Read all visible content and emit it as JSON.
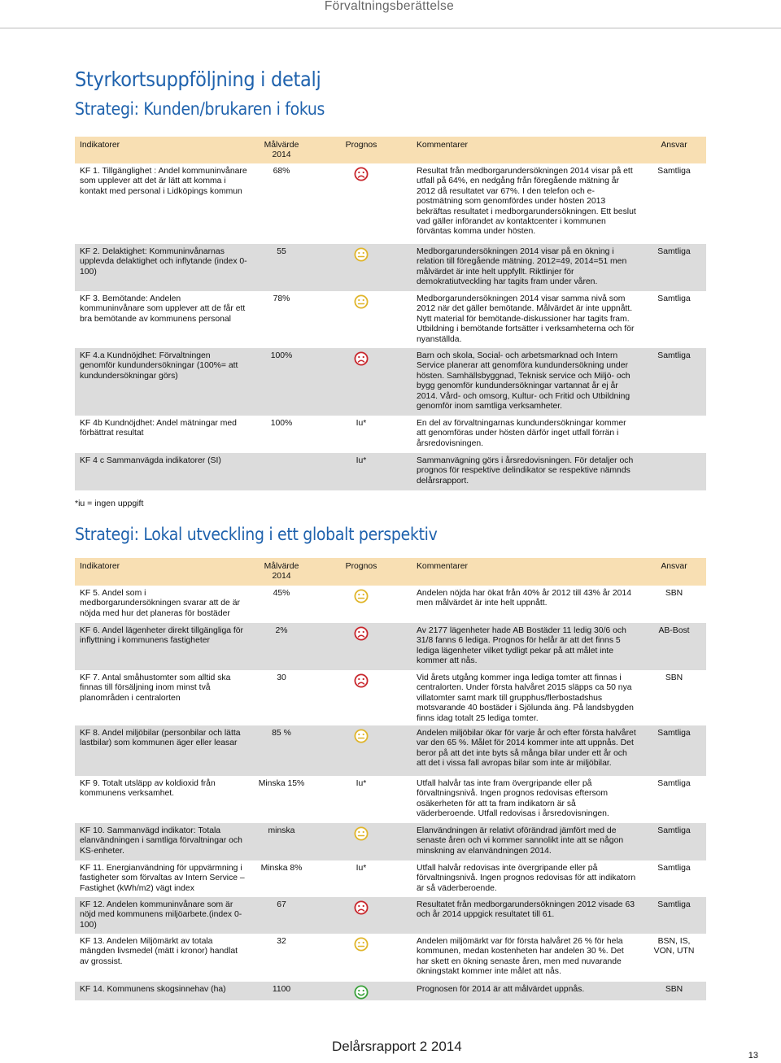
{
  "header": {
    "section": "Förvaltningsberättelse"
  },
  "title": "Styrkortsuppföljning i detalj",
  "sections": [
    {
      "heading": "Strategi: Kunden/brukaren i fokus",
      "columns": [
        "Indikatorer",
        "Målvärde 2014",
        "Prognos",
        "Kommentarer",
        "Ansvar"
      ],
      "rows": [
        {
          "indicator": "KF 1. Tillgänglighet : Andel kommuninvånare som upplever att det är lätt att komma i kontakt med personal i Lidköpings kommun",
          "target": "68%",
          "icon": "sad",
          "comment": "Resultat från medborgarundersökningen 2014 visar på ett utfall på 64%, en nedgång från föregående mätning år 2012 då resultatet var 67%. I den telefon och e-postmätning som genomfördes under hösten 2013 bekräftas resultatet i medborgarundersökningen. Ett beslut vad gäller införandet av kontaktcenter i kommunen förväntas komma under hösten.",
          "responsible": "Samtliga"
        },
        {
          "indicator": "KF 2. Delaktighet: Kommuninvånarnas upplevda delaktighet och inflytande (index 0-100)",
          "target": "55",
          "icon": "neutral",
          "comment": "Medborgarundersökningen 2014 visar på en ökning i relation till föregående mätning. 2012=49, 2014=51 men målvärdet är inte helt uppfyllt. Riktlinjer för demokratiutveckling har tagits fram under våren.",
          "responsible": "Samtliga"
        },
        {
          "indicator": "KF 3. Bemötande: Andelen kommuninvånare som upplever att de får ett bra bemötande av kommunens personal",
          "target": "78%",
          "icon": "neutral",
          "comment": "Medborgarundersökningen 2014 visar samma nivå som 2012 när det gäller bemötande. Målvärdet är inte uppnått. Nytt material för bemötande-diskussioner har tagits fram. Utbildning i bemötande fortsätter i verksamheterna och för nyanställda.",
          "responsible": "Samtliga"
        },
        {
          "indicator": "KF 4.a Kundnöjdhet: Förvaltningen genomför kundundersökningar (100%= att kundundersökningar görs)",
          "target": "100%",
          "icon": "sad",
          "comment": "Barn och skola, Social- och arbetsmarknad och Intern Service planerar att genomföra kundundersökning under hösten. Samhällsbyggnad, Teknisk service och Miljö- och bygg genomför kundundersökningar vartannat år ej år 2014. Vård- och omsorg, Kultur- och Fritid och Utbildning genomför inom samtliga verksamheter.",
          "responsible": "Samtliga"
        },
        {
          "indicator": "KF 4b Kundnöjdhet: Andel mätningar med förbättrat resultat",
          "target": "100%",
          "prognosis": "Iu*",
          "comment": "En del av förvaltningarnas kundundersökningar kommer att genomföras under hösten därför inget utfall förrän i årsredovisningen."
        },
        {
          "indicator": "KF 4 c Sammanvägda indikatorer (SI)",
          "prognosis": "Iu*",
          "comment": "Sammanvägning görs i årsredovisningen. För detaljer och prognos för respektive delindikator se respektive nämnds delårsrapport."
        }
      ],
      "footnote": "*iu = ingen uppgift"
    },
    {
      "heading": "Strategi: Lokal utveckling i ett globalt perspektiv",
      "columns": [
        "Indikatorer",
        "Målvärde 2014",
        "Prognos",
        "Kommentarer",
        "Ansvar"
      ],
      "rows": [
        {
          "indicator": "KF 5. Andel som i medborgarundersökningen svarar att de är nöjda med hur det planeras för bostäder",
          "target": "45%",
          "icon": "neutral",
          "comment": "Andelen nöjda har ökat från 40% år 2012 till 43% år 2014 men målvärdet är inte helt uppnått.",
          "responsible": "SBN"
        },
        {
          "indicator": "KF 6. Andel lägenheter direkt tillgängliga för inflyttning i kommunens fastigheter",
          "target": "2%",
          "icon": "sad",
          "comment": "Av 2177 lägenheter hade AB Bostäder 11 ledig 30/6 och 31/8 fanns 6 lediga. Prognos för helår är att det finns 5 lediga lägenheter vilket tydligt pekar på att målet inte kommer att nås.",
          "responsible": "AB-Bost"
        },
        {
          "indicator": "KF 7. Antal småhustomter som alltid ska finnas till försäljning inom minst två planområden i centralorten",
          "target": "30",
          "icon": "sad",
          "comment": "Vid årets utgång kommer inga lediga tomter att finnas i centralorten. Under första halvåret 2015 släpps ca 50 nya villatomter samt mark till grupphus/flerbostadshus motsvarande 40 bostäder i Sjölunda äng. På landsbygden finns idag totalt 25 lediga tomter.",
          "responsible": "SBN"
        },
        {
          "indicator": "KF 8. Andel miljöbilar (personbilar och lätta lastbilar) som kommunen äger eller leasar",
          "target": "85 %",
          "icon": "neutral",
          "comment": "Andelen miljöbilar ökar för varje år och efter första halvåret var den 65 %. Målet för 2014 kommer inte att uppnås. Det beror på att det inte byts så många bilar under ett år och att det i vissa fall avropas bilar som inte är miljöbilar.",
          "responsible": "Samtliga"
        },
        {
          "indicator": "KF 9. Totalt utsläpp av koldioxid från kommunens verksamhet.",
          "target": "Minska 15%",
          "prognosis": "Iu*",
          "comment": "Utfall halvår tas inte fram övergripande eller på förvaltningsnivå. Ingen prognos redovisas eftersom osäkerheten för att ta fram indikatorn är så väderberoende. Utfall redovisas i årsredovisningen.",
          "responsible": "Samtliga"
        },
        {
          "indicator": "KF 10. Sammanvägd indikator: Totala elanvändningen i samtliga förvaltningar och KS-enheter.",
          "target": "minska",
          "icon": "neutral",
          "comment": "Elanvändningen är relativt oförändrad jämfört med de senaste åren och vi kommer sannolikt inte att se någon minskning av elanvändningen 2014.",
          "responsible": "Samtliga"
        },
        {
          "indicator": "KF 11. Energianvändning för uppvärmning i fastigheter som förvaltas av Intern Service – Fastighet (kWh/m2) vägt index",
          "target": "Minska 8%",
          "prognosis": "Iu*",
          "comment": "Utfall halvår redovisas inte övergripande eller på förvaltningsnivå. Ingen prognos redovisas för att indikatorn är så väderberoende.",
          "responsible": "Samtliga"
        },
        {
          "indicator": "KF 12. Andelen kommuninvånare som är nöjd med kommunens miljöarbete.(index 0-100)",
          "target": "67",
          "icon": "sad",
          "comment": "Resultatet från medborgarundersökningen 2012 visade 63 och år 2014 uppgick resultatet till 61.",
          "responsible": "Samtliga"
        },
        {
          "indicator": "KF 13. Andelen Miljömärkt av totala mängden livsmedel (mätt i kronor) handlat av grossist.",
          "target": "32",
          "icon": "neutral",
          "comment": "Andelen miljömärkt var för första halvåret 26 % för hela kommunen, medan kostenheten har andelen 30 %. Det har skett en ökning senaste åren, men med nuvarande ökningstakt kommer inte målet att nås.",
          "responsible": "BSN, IS, VON, UTN"
        },
        {
          "indicator": "KF 14. Kommunens skogsinnehav (ha)",
          "target": "1100",
          "icon": "happy",
          "comment": "Prognosen för 2014 är att målvärdet uppnås.",
          "responsible": "SBN"
        }
      ]
    }
  ],
  "footer": {
    "report": "Delårsrapport 2 2014",
    "page": "13"
  }
}
